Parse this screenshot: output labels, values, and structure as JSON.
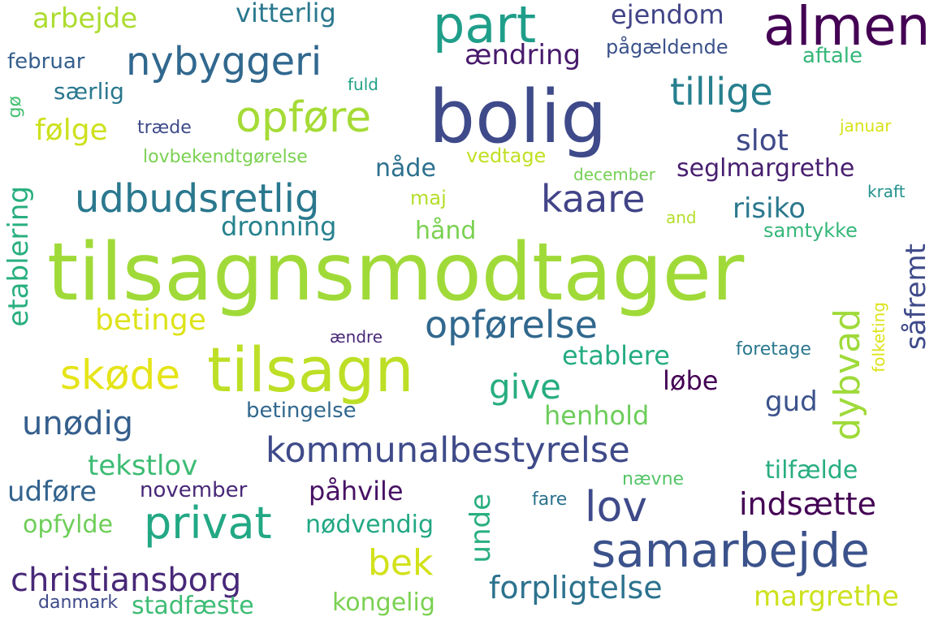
{
  "words": [
    {
      "text": "tilsagnsmodtager",
      "color": "#a0da39"
    },
    {
      "text": "bolig",
      "color": "#3e4a89"
    },
    {
      "text": "tilsagn",
      "color": "#bddf26"
    },
    {
      "text": "almen",
      "color": "#440154"
    },
    {
      "text": "part",
      "color": "#1f9e89"
    },
    {
      "text": "samarbejde",
      "color": "#3b528b"
    },
    {
      "text": "kommunalbestyrelse",
      "color": "#3e4a89"
    },
    {
      "text": "udbudsretlig",
      "color": "#2a788e"
    },
    {
      "text": "nybyggeri",
      "color": "#31688e"
    },
    {
      "text": "privat",
      "color": "#22a884"
    },
    {
      "text": "opføre",
      "color": "#a5db36"
    },
    {
      "text": "tillige",
      "color": "#277f8e"
    },
    {
      "text": "opførelse",
      "color": "#31688e"
    },
    {
      "text": "kaare",
      "color": "#414487"
    },
    {
      "text": "skøde",
      "color": "#e5e419"
    },
    {
      "text": "lov",
      "color": "#3e4a89"
    },
    {
      "text": "christiansborg",
      "color": "#482878"
    },
    {
      "text": "give",
      "color": "#26ad81"
    },
    {
      "text": "unødig",
      "color": "#355f8d"
    },
    {
      "text": "bek",
      "color": "#d2e21b"
    },
    {
      "text": "indsætte",
      "color": "#440154"
    },
    {
      "text": "forpligtelse",
      "color": "#2c728e"
    },
    {
      "text": "arbejde",
      "color": "#addc30"
    },
    {
      "text": "vitterlig",
      "color": "#2a788e"
    },
    {
      "text": "ejendom",
      "color": "#414487"
    },
    {
      "text": "ændring",
      "color": "#481a6c"
    },
    {
      "text": "pågældende",
      "color": "#3b528b"
    },
    {
      "text": "aftale",
      "color": "#35b779"
    },
    {
      "text": "februar",
      "color": "#355f8d"
    },
    {
      "text": "fuld",
      "color": "#20a386"
    },
    {
      "text": "særlig",
      "color": "#2a788e"
    },
    {
      "text": "følge",
      "color": "#cde11d"
    },
    {
      "text": "træde",
      "color": "#3e4a89"
    },
    {
      "text": "slot",
      "color": "#3e4a89"
    },
    {
      "text": "januar",
      "color": "#d8e219"
    },
    {
      "text": "nåde",
      "color": "#2d708e"
    },
    {
      "text": "vedtage",
      "color": "#c2df23"
    },
    {
      "text": "lovbekendtgørelse",
      "color": "#7ad151"
    },
    {
      "text": "december",
      "color": "#75d054"
    },
    {
      "text": "seglmargrethe",
      "color": "#481f70"
    },
    {
      "text": "maj",
      "color": "#b5de2b"
    },
    {
      "text": "kraft",
      "color": "#21918c"
    },
    {
      "text": "dronning",
      "color": "#26828e"
    },
    {
      "text": "risiko",
      "color": "#2a788e"
    },
    {
      "text": "and",
      "color": "#b5de2b"
    },
    {
      "text": "hånd",
      "color": "#7ad151"
    },
    {
      "text": "samtykke",
      "color": "#35b779"
    },
    {
      "text": "betinge",
      "color": "#dde318"
    },
    {
      "text": "ændre",
      "color": "#482878"
    },
    {
      "text": "foretage",
      "color": "#2a788e"
    },
    {
      "text": "etablere",
      "color": "#25ac82"
    },
    {
      "text": "løbe",
      "color": "#440154"
    },
    {
      "text": "gud",
      "color": "#3b528b"
    },
    {
      "text": "betingelse",
      "color": "#31688e"
    },
    {
      "text": "henhold",
      "color": "#6ccd5a"
    },
    {
      "text": "tekstlov",
      "color": "#3dbc74"
    },
    {
      "text": "tilfælde",
      "color": "#28ae80"
    },
    {
      "text": "nævne",
      "color": "#54c568"
    },
    {
      "text": "udføre",
      "color": "#33638d"
    },
    {
      "text": "november",
      "color": "#482878"
    },
    {
      "text": "påhvile",
      "color": "#471164"
    },
    {
      "text": "fare",
      "color": "#2c728e"
    },
    {
      "text": "opfylde",
      "color": "#6ece58"
    },
    {
      "text": "nødvendig",
      "color": "#22a884"
    },
    {
      "text": "danmark",
      "color": "#3e4a89"
    },
    {
      "text": "stadfæste",
      "color": "#3dbc74"
    },
    {
      "text": "kongelig",
      "color": "#7ad151"
    },
    {
      "text": "margrethe",
      "color": "#cde11d"
    },
    {
      "text": "gø",
      "color": "#44bf70"
    },
    {
      "text": "etablering",
      "color": "#29af7f"
    },
    {
      "text": "unde",
      "color": "#29af7f"
    },
    {
      "text": "dybvad",
      "color": "#9fda3a"
    },
    {
      "text": "såfremt",
      "color": "#3e4a89"
    },
    {
      "text": "folketing",
      "color": "#dde318"
    }
  ]
}
